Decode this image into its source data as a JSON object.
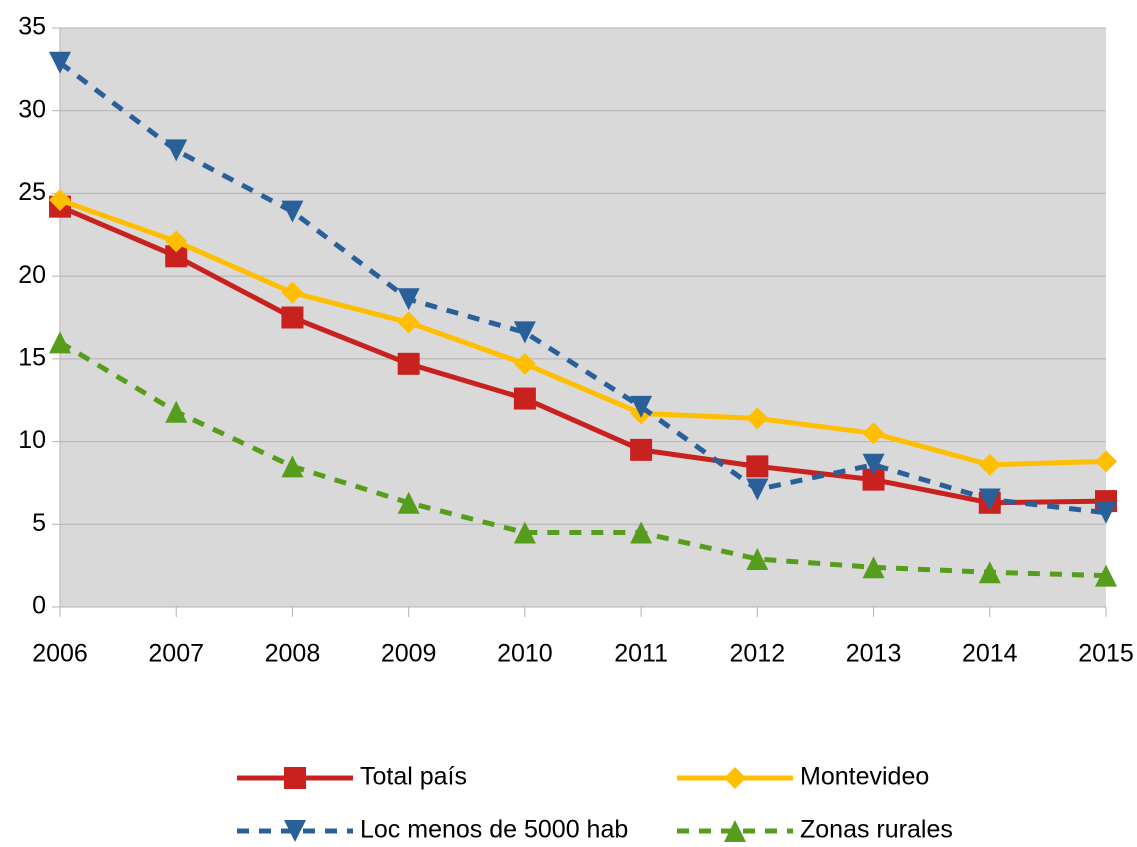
{
  "chart_data": {
    "type": "line",
    "categories": [
      "2006",
      "2007",
      "2008",
      "2009",
      "2010",
      "2011",
      "2012",
      "2013",
      "2014",
      "2015"
    ],
    "series": [
      {
        "name": "Total país",
        "color": "#c9211e",
        "marker": "square",
        "dashed": false,
        "values": [
          24.2,
          21.2,
          17.5,
          14.7,
          12.6,
          9.5,
          8.5,
          7.7,
          6.3,
          6.4
        ]
      },
      {
        "name": "Montevideo",
        "color": "#ffbf00",
        "marker": "diamond",
        "dashed": false,
        "values": [
          24.6,
          22.1,
          19.0,
          17.2,
          14.7,
          11.7,
          11.4,
          10.5,
          8.6,
          8.8
        ]
      },
      {
        "name": "Loc menos de 5000 hab",
        "color": "#2a6099",
        "marker": "triangle-down",
        "dashed": true,
        "values": [
          32.9,
          27.6,
          23.9,
          18.6,
          16.6,
          12.1,
          7.1,
          8.6,
          6.5,
          5.7
        ]
      },
      {
        "name": "Zonas rurales",
        "color": "#579d1c",
        "marker": "triangle-up",
        "dashed": true,
        "values": [
          16.0,
          11.8,
          8.5,
          6.3,
          4.5,
          4.5,
          2.9,
          2.4,
          2.1,
          1.9
        ]
      }
    ],
    "ylim": [
      0,
      35
    ],
    "yticks": [
      0,
      5,
      10,
      15,
      20,
      25,
      30,
      35
    ],
    "grid": true,
    "legend": "bottom"
  }
}
